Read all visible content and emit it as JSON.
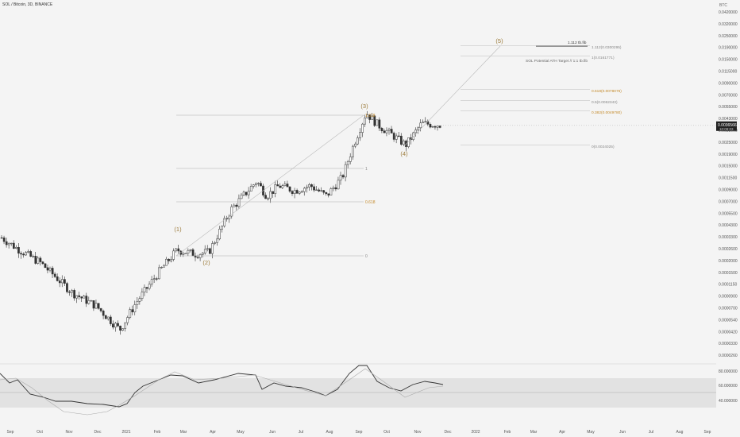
{
  "header": {
    "title": "SOL / Bitcoin, 3D, BINANCE",
    "axis_unit": "BTC"
  },
  "price_axis": {
    "ticks": [
      "0.0420000",
      "0.0320000",
      "0.0250000",
      "0.0190000",
      "0.0150000",
      "0.0115000",
      "0.0090000",
      "0.0070000",
      "0.0055000",
      "0.0043000",
      "0.0033000",
      "0.0025000",
      "0.0019000",
      "0.0015000",
      "0.0011500",
      "0.0009000",
      "0.0007000",
      "0.0005500",
      "0.0004300",
      "0.0003300",
      "0.0002600",
      "0.0002000",
      "0.0001500",
      "0.0001150",
      "0.0000900",
      "0.0000700",
      "0.0000540",
      "0.0000420",
      "0.0000330",
      "0.0000260"
    ],
    "last_price": "0.0036566",
    "last_time": "10:09:03"
  },
  "rsi_axis": {
    "ticks": [
      "80.000000",
      "60.000000",
      "40.000000"
    ]
  },
  "time_axis": {
    "ticks": [
      "Sep",
      "Oct",
      "Nov",
      "Dec",
      "2021",
      "Feb",
      "Mar",
      "Apr",
      "May",
      "Jun",
      "Jul",
      "Aug",
      "Sep",
      "Oct",
      "Nov",
      "Dec",
      "2022",
      "Feb",
      "Mar",
      "Apr",
      "May",
      "Jun",
      "Jul",
      "Aug",
      "Sep"
    ]
  },
  "annotations": {
    "waves": [
      "(1)",
      "(2)",
      "(3)",
      "(4)",
      "(5)"
    ],
    "fib_left": [
      "1.618",
      "1",
      "0.618",
      "0"
    ],
    "fib_right": [
      "1.112 tb.fib",
      "1.112(0.0300295)",
      "1(0.0161771)",
      "SOL Potential ATH Target // 1:1 tb.fib",
      "0.618(0.0078076)",
      "0.5(0.0062343)",
      "0.382(0.0049780)",
      "0(0.0024025)"
    ]
  },
  "colors": {
    "up": "#ffffff",
    "down": "#333333",
    "wick": "#333333",
    "wave": "#9c7c3c",
    "fib_orange": "#c48a2a",
    "rsi_line": "#333333",
    "rsi_band": "#dcdcdc"
  },
  "chart_data": {
    "type": "candlestick",
    "title": "SOL / Bitcoin, 3D, BINANCE",
    "y_unit": "BTC",
    "y_scale": "log",
    "ylim": [
      2.6e-05,
      0.042
    ],
    "x_range": [
      "2020-09",
      "2022-09"
    ],
    "wave_points": [
      {
        "label": "(1)",
        "date": "2021-03",
        "price": 0.00025
      },
      {
        "label": "(2)",
        "date": "2021-04",
        "price": 0.00022
      },
      {
        "label": "(3)",
        "date": "2021-09",
        "price": 0.0048
      },
      {
        "label": "(4)",
        "date": "2021-10",
        "price": 0.0024
      },
      {
        "label": "(5)",
        "date": "2022-01",
        "price": 0.032
      }
    ],
    "fib_levels": [
      {
        "label": "1.112",
        "value": 0.0300295
      },
      {
        "label": "1",
        "value": 0.0161771
      },
      {
        "label": "0.618",
        "value": 0.0078076
      },
      {
        "label": "0.5",
        "value": 0.0062343
      },
      {
        "label": "0.382",
        "value": 0.004978
      },
      {
        "label": "0",
        "value": 0.0024025
      }
    ],
    "last_price": 0.0036566,
    "rsi": {
      "upper": 80,
      "mid": 60,
      "lower": 40
    }
  }
}
